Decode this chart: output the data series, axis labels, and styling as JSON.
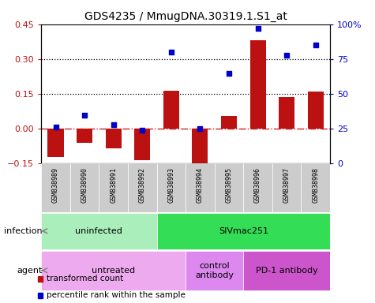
{
  "title": "GDS4235 / MmugDNA.30319.1.S1_at",
  "samples": [
    "GSM838989",
    "GSM838990",
    "GSM838991",
    "GSM838992",
    "GSM838993",
    "GSM838994",
    "GSM838995",
    "GSM838996",
    "GSM838997",
    "GSM838998"
  ],
  "transformed_count": [
    -0.12,
    -0.06,
    -0.085,
    -0.135,
    0.165,
    -0.175,
    0.055,
    0.38,
    0.135,
    0.16
  ],
  "percentile_rank": [
    26,
    35,
    28,
    24,
    80,
    25,
    65,
    97,
    78,
    85
  ],
  "ylim_left": [
    -0.15,
    0.45
  ],
  "ylim_right": [
    0,
    100
  ],
  "yticks_left": [
    -0.15,
    0.0,
    0.15,
    0.3,
    0.45
  ],
  "yticks_right": [
    0,
    25,
    50,
    75,
    100
  ],
  "hlines": [
    0.15,
    0.3
  ],
  "bar_color": "#bb1111",
  "dot_color": "#0000cc",
  "dashdot_color": "#cc2222",
  "infection_groups": [
    {
      "label": "uninfected",
      "start": 0,
      "end": 3,
      "color": "#aaeebb"
    },
    {
      "label": "SIVmac251",
      "start": 4,
      "end": 9,
      "color": "#33dd55"
    }
  ],
  "agent_groups": [
    {
      "label": "untreated",
      "start": 0,
      "end": 4,
      "color": "#eeaaee"
    },
    {
      "label": "control\nantibody",
      "start": 5,
      "end": 6,
      "color": "#dd88ee"
    },
    {
      "label": "PD-1 antibody",
      "start": 7,
      "end": 9,
      "color": "#cc55cc"
    }
  ],
  "legend_items": [
    {
      "label": "transformed count",
      "color": "#bb1111"
    },
    {
      "label": "percentile rank within the sample",
      "color": "#0000cc"
    }
  ],
  "infection_label": "infection",
  "agent_label": "agent",
  "sample_box_color": "#cccccc"
}
